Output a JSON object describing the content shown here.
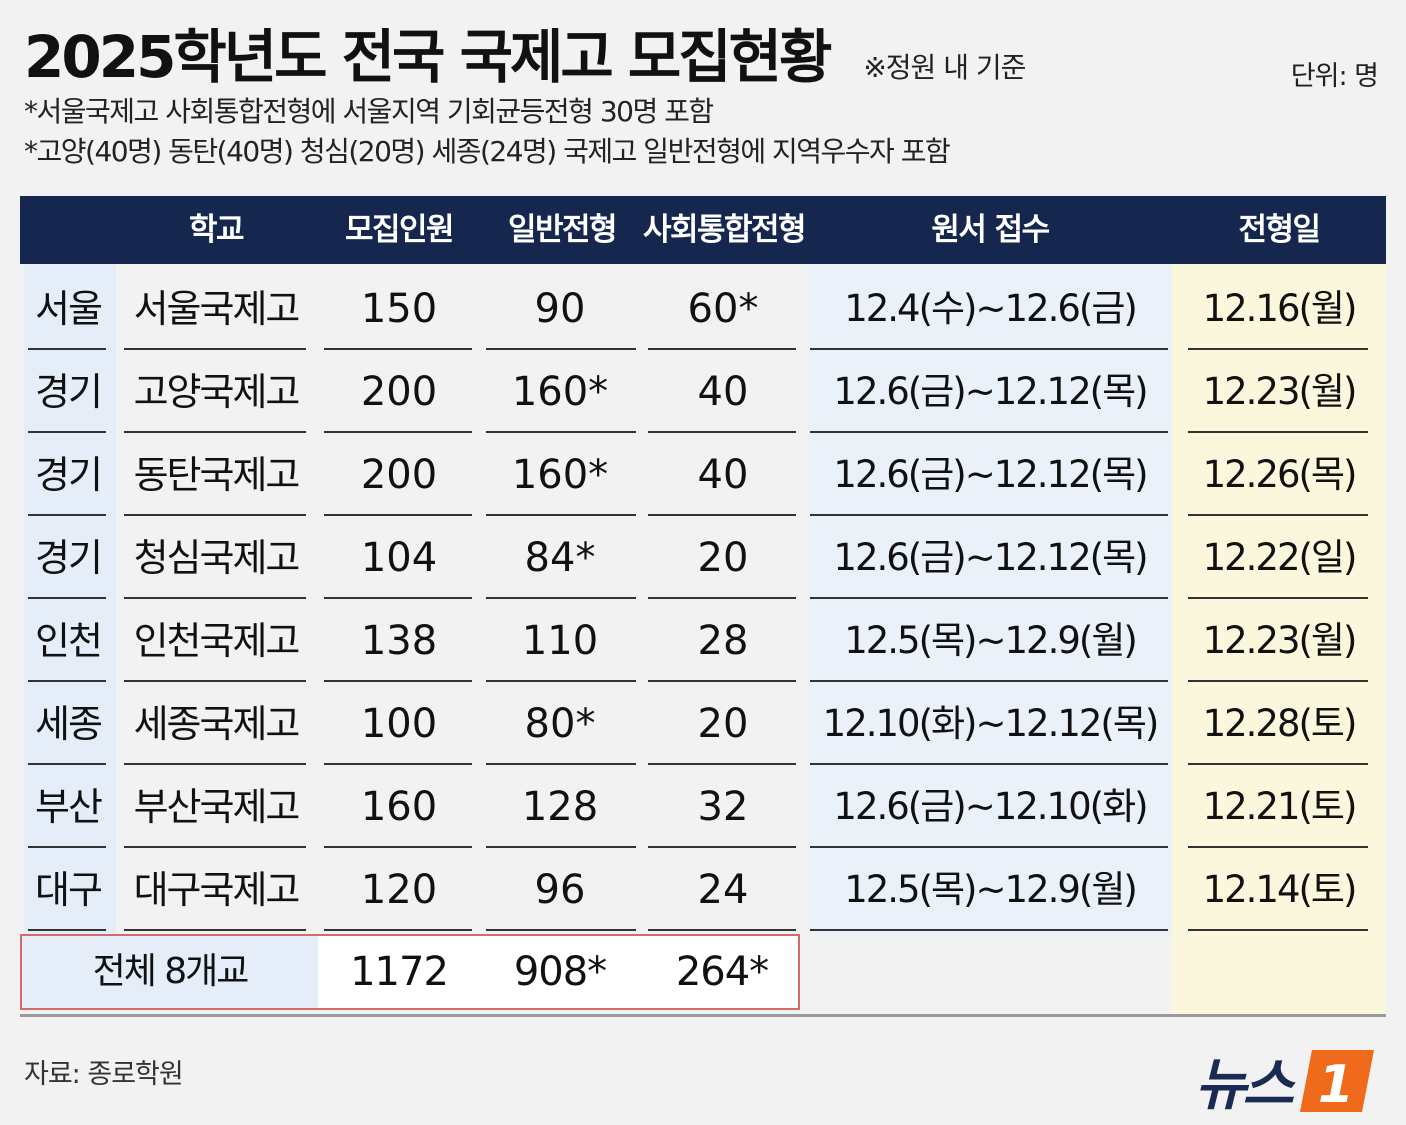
{
  "header": {
    "title": "2025학년도 전국 국제고 모집현황",
    "title_note": "※정원 내 기준",
    "unit": "단위: 명",
    "notes": [
      "*서울국제고 사회통합전형에 서울지역 기회균등전형 30명 포함",
      "*고양(40명) 동탄(40명) 청심(20명) 세종(24명) 국제고 일반전형에 지역우수자 포함"
    ]
  },
  "chart_data": {
    "type": "table",
    "columns": [
      "학교",
      "모집인원",
      "일반전형",
      "사회통합전형",
      "원서 접수",
      "전형일"
    ],
    "rows": [
      {
        "region": "서울",
        "school": "서울국제고",
        "total": "150",
        "general": "90",
        "social": "60*",
        "application": "12.4(수)~12.6(금)",
        "exam_date": "12.16(월)"
      },
      {
        "region": "경기",
        "school": "고양국제고",
        "total": "200",
        "general": "160*",
        "social": "40",
        "application": "12.6(금)~12.12(목)",
        "exam_date": "12.23(월)"
      },
      {
        "region": "경기",
        "school": "동탄국제고",
        "total": "200",
        "general": "160*",
        "social": "40",
        "application": "12.6(금)~12.12(목)",
        "exam_date": "12.26(목)"
      },
      {
        "region": "경기",
        "school": "청심국제고",
        "total": "104",
        "general": "84*",
        "social": "20",
        "application": "12.6(금)~12.12(목)",
        "exam_date": "12.22(일)"
      },
      {
        "region": "인천",
        "school": "인천국제고",
        "total": "138",
        "general": "110",
        "social": "28",
        "application": "12.5(목)~12.9(월)",
        "exam_date": "12.23(월)"
      },
      {
        "region": "세종",
        "school": "세종국제고",
        "total": "100",
        "general": "80*",
        "social": "20",
        "application": "12.10(화)~12.12(목)",
        "exam_date": "12.28(토)"
      },
      {
        "region": "부산",
        "school": "부산국제고",
        "total": "160",
        "general": "128",
        "social": "32",
        "application": "12.6(금)~12.10(화)",
        "exam_date": "12.21(토)"
      },
      {
        "region": "대구",
        "school": "대구국제고",
        "total": "120",
        "general": "96",
        "social": "24",
        "application": "12.5(목)~12.9(월)",
        "exam_date": "12.14(토)"
      }
    ],
    "total_row": {
      "label": "전체 8개교",
      "total": "1172",
      "general": "908*",
      "social": "264*"
    }
  },
  "footer": {
    "source": "자료: 종로학원",
    "logo_text": "뉴스",
    "logo_mark": "1"
  },
  "colors": {
    "header_bg": "#15264f",
    "region_bg": "#e5eef8",
    "dates_bg": "#eaf1f9",
    "exam_day_bg": "#fbf7dc",
    "total_border": "#d96a6a",
    "logo_orange": "#ef6a1a"
  }
}
